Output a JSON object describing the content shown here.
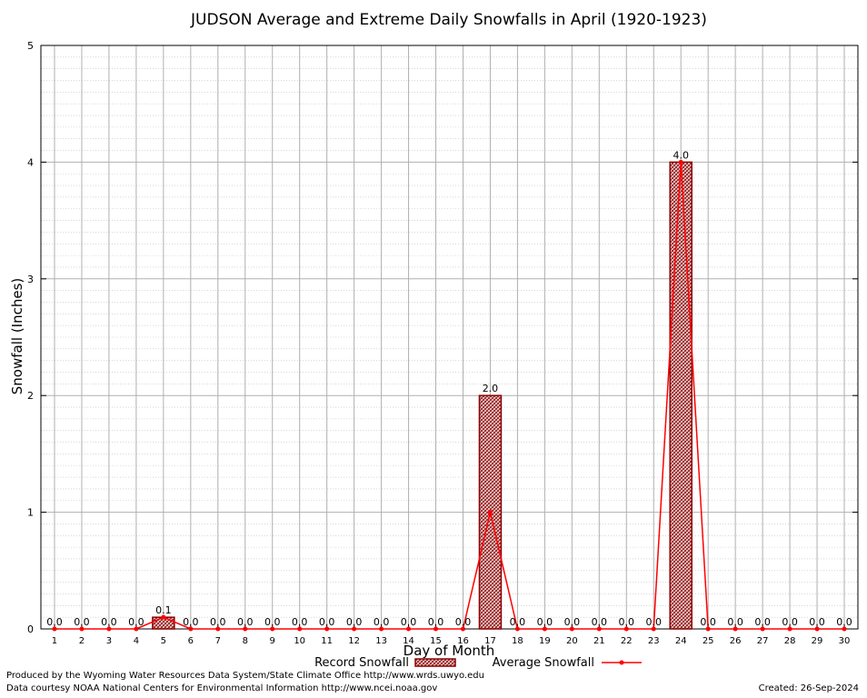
{
  "chart_data": {
    "type": "bar",
    "title": "JUDSON Average and Extreme Daily Snowfalls in April (1920-1923)",
    "xlabel": "Day of Month",
    "ylabel": "Snowfall (Inches)",
    "ylim": [
      0,
      5
    ],
    "yticks": [
      "0",
      "1",
      "2",
      "3",
      "4",
      "5"
    ],
    "categories": [
      "1",
      "2",
      "3",
      "4",
      "5",
      "6",
      "7",
      "8",
      "9",
      "10",
      "11",
      "12",
      "13",
      "14",
      "15",
      "16",
      "17",
      "18",
      "19",
      "20",
      "21",
      "22",
      "23",
      "24",
      "25",
      "26",
      "27",
      "28",
      "29",
      "30"
    ],
    "series": [
      {
        "name": "Record Snowfall",
        "type": "bar",
        "values": [
          0,
          0,
          0,
          0,
          0.1,
          0,
          0,
          0,
          0,
          0,
          0,
          0,
          0,
          0,
          0,
          0,
          2.0,
          0,
          0,
          0,
          0,
          0,
          0,
          4.0,
          0,
          0,
          0,
          0,
          0,
          0
        ],
        "labels": [
          "0.0",
          "0.0",
          "0.0",
          "0.0",
          "0.1",
          "0.0",
          "0.0",
          "0.0",
          "0.0",
          "0.0",
          "0.0",
          "0.0",
          "0.0",
          "0.0",
          "0.0",
          "0.0",
          "2.0",
          "0.0",
          "0.0",
          "0.0",
          "0.0",
          "0.0",
          "0.0",
          "4.0",
          "0.0",
          "0.0",
          "0.0",
          "0.0",
          "0.0",
          "0.0"
        ]
      },
      {
        "name": "Average Snowfall",
        "type": "line",
        "values": [
          0,
          0,
          0,
          0,
          0.1,
          0,
          0,
          0,
          0,
          0,
          0,
          0,
          0,
          0,
          0,
          0,
          1.0,
          0,
          0,
          0,
          0,
          0,
          0,
          4.0,
          0,
          0,
          0,
          0,
          0,
          0
        ]
      }
    ],
    "grid": true,
    "legend": "bottom"
  },
  "colors": {
    "bar_fill": "#c8a8a8",
    "bar_stroke": "#8b0000",
    "line": "#ff0000",
    "grid": "#b0b0b0"
  },
  "footer": {
    "produced_by": "Produced by the Wyoming Water Resources Data System/State Climate Office http://www.wrds.uwyo.edu",
    "data_courtesy": "Data courtesy NOAA National Centers for Environmental Information http://www.ncei.noaa.gov",
    "created": "Created:  26-Sep-2024"
  }
}
